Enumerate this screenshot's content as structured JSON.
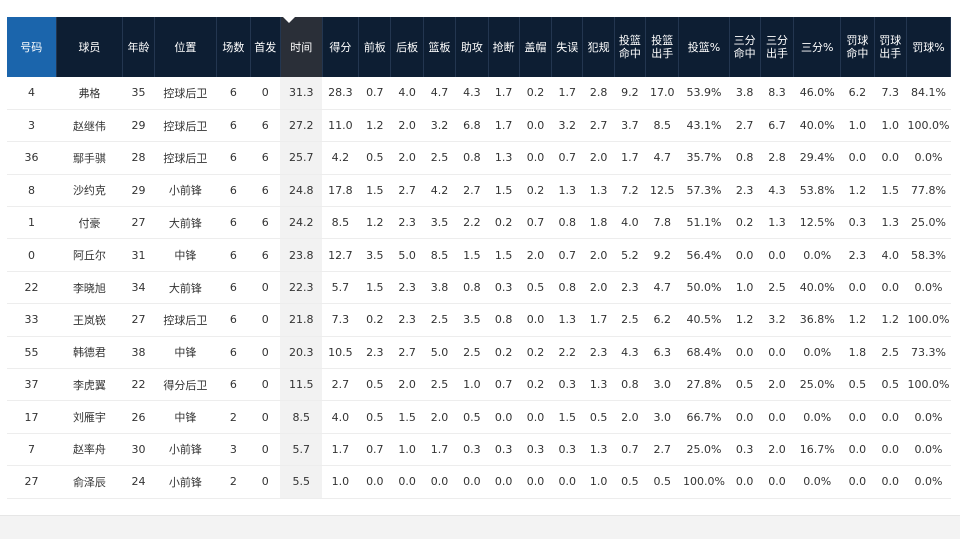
{
  "columns": [
    {
      "key": "num",
      "label": "号码"
    },
    {
      "key": "player",
      "label": "球员"
    },
    {
      "key": "age",
      "label": "年龄"
    },
    {
      "key": "pos",
      "label": "位置"
    },
    {
      "key": "games",
      "label": "场数"
    },
    {
      "key": "starts",
      "label": "首发"
    },
    {
      "key": "min",
      "label": "时间",
      "sorted": true
    },
    {
      "key": "pts",
      "label": "得分"
    },
    {
      "key": "oreb",
      "label": "前板"
    },
    {
      "key": "dreb",
      "label": "后板"
    },
    {
      "key": "reb",
      "label": "篮板"
    },
    {
      "key": "ast",
      "label": "助攻"
    },
    {
      "key": "stl",
      "label": "抢断"
    },
    {
      "key": "blk",
      "label": "盖帽"
    },
    {
      "key": "tov",
      "label": "失误"
    },
    {
      "key": "pf",
      "label": "犯规"
    },
    {
      "key": "fgm",
      "label": "投篮 命中"
    },
    {
      "key": "fga",
      "label": "投篮 出手"
    },
    {
      "key": "fgp",
      "label": "投篮%"
    },
    {
      "key": "tpm",
      "label": "三分 命中"
    },
    {
      "key": "tpa",
      "label": "三分 出手"
    },
    {
      "key": "tpp",
      "label": "三分%"
    },
    {
      "key": "ftm",
      "label": "罚球 命中"
    },
    {
      "key": "fta",
      "label": "罚球 出手"
    },
    {
      "key": "ftp",
      "label": "罚球%"
    }
  ],
  "rows": [
    [
      "4",
      "弗格",
      "35",
      "控球后卫",
      "6",
      "0",
      "31.3",
      "28.3",
      "0.7",
      "4.0",
      "4.7",
      "4.3",
      "1.7",
      "0.2",
      "1.7",
      "2.8",
      "9.2",
      "17.0",
      "53.9%",
      "3.8",
      "8.3",
      "46.0%",
      "6.2",
      "7.3",
      "84.1%"
    ],
    [
      "3",
      "赵继伟",
      "29",
      "控球后卫",
      "6",
      "6",
      "27.2",
      "11.0",
      "1.2",
      "2.0",
      "3.2",
      "6.8",
      "1.7",
      "0.0",
      "3.2",
      "2.7",
      "3.7",
      "8.5",
      "43.1%",
      "2.7",
      "6.7",
      "40.0%",
      "1.0",
      "1.0",
      "100.0%"
    ],
    [
      "36",
      "鄢手骐",
      "28",
      "控球后卫",
      "6",
      "6",
      "25.7",
      "4.2",
      "0.5",
      "2.0",
      "2.5",
      "0.8",
      "1.3",
      "0.0",
      "0.7",
      "2.0",
      "1.7",
      "4.7",
      "35.7%",
      "0.8",
      "2.8",
      "29.4%",
      "0.0",
      "0.0",
      "0.0%"
    ],
    [
      "8",
      "沙约克",
      "29",
      "小前锋",
      "6",
      "6",
      "24.8",
      "17.8",
      "1.5",
      "2.7",
      "4.2",
      "2.7",
      "1.5",
      "0.2",
      "1.3",
      "1.3",
      "7.2",
      "12.5",
      "57.3%",
      "2.3",
      "4.3",
      "53.8%",
      "1.2",
      "1.5",
      "77.8%"
    ],
    [
      "1",
      "付豪",
      "27",
      "大前锋",
      "6",
      "6",
      "24.2",
      "8.5",
      "1.2",
      "2.3",
      "3.5",
      "2.2",
      "0.2",
      "0.7",
      "0.8",
      "1.8",
      "4.0",
      "7.8",
      "51.1%",
      "0.2",
      "1.3",
      "12.5%",
      "0.3",
      "1.3",
      "25.0%"
    ],
    [
      "0",
      "阿丘尔",
      "31",
      "中锋",
      "6",
      "6",
      "23.8",
      "12.7",
      "3.5",
      "5.0",
      "8.5",
      "1.5",
      "1.5",
      "2.0",
      "0.7",
      "2.0",
      "5.2",
      "9.2",
      "56.4%",
      "0.0",
      "0.0",
      "0.0%",
      "2.3",
      "4.0",
      "58.3%"
    ],
    [
      "22",
      "李晓旭",
      "34",
      "大前锋",
      "6",
      "0",
      "22.3",
      "5.7",
      "1.5",
      "2.3",
      "3.8",
      "0.8",
      "0.3",
      "0.5",
      "0.8",
      "2.0",
      "2.3",
      "4.7",
      "50.0%",
      "1.0",
      "2.5",
      "40.0%",
      "0.0",
      "0.0",
      "0.0%"
    ],
    [
      "33",
      "王岚嵚",
      "27",
      "控球后卫",
      "6",
      "0",
      "21.8",
      "7.3",
      "0.2",
      "2.3",
      "2.5",
      "3.5",
      "0.8",
      "0.0",
      "1.3",
      "1.7",
      "2.5",
      "6.2",
      "40.5%",
      "1.2",
      "3.2",
      "36.8%",
      "1.2",
      "1.2",
      "100.0%"
    ],
    [
      "55",
      "韩德君",
      "38",
      "中锋",
      "6",
      "0",
      "20.3",
      "10.5",
      "2.3",
      "2.7",
      "5.0",
      "2.5",
      "0.2",
      "0.2",
      "2.2",
      "2.3",
      "4.3",
      "6.3",
      "68.4%",
      "0.0",
      "0.0",
      "0.0%",
      "1.8",
      "2.5",
      "73.3%"
    ],
    [
      "37",
      "李虎翼",
      "22",
      "得分后卫",
      "6",
      "0",
      "11.5",
      "2.7",
      "0.5",
      "2.0",
      "2.5",
      "1.0",
      "0.7",
      "0.2",
      "0.3",
      "1.3",
      "0.8",
      "3.0",
      "27.8%",
      "0.5",
      "2.0",
      "25.0%",
      "0.5",
      "0.5",
      "100.0%"
    ],
    [
      "17",
      "刘雁宇",
      "26",
      "中锋",
      "2",
      "0",
      "8.5",
      "4.0",
      "0.5",
      "1.5",
      "2.0",
      "0.5",
      "0.0",
      "0.0",
      "1.5",
      "0.5",
      "2.0",
      "3.0",
      "66.7%",
      "0.0",
      "0.0",
      "0.0%",
      "0.0",
      "0.0",
      "0.0%"
    ],
    [
      "7",
      "赵率舟",
      "30",
      "小前锋",
      "3",
      "0",
      "5.7",
      "1.7",
      "0.7",
      "1.0",
      "1.7",
      "0.3",
      "0.3",
      "0.3",
      "0.3",
      "1.3",
      "0.7",
      "2.7",
      "25.0%",
      "0.3",
      "2.0",
      "16.7%",
      "0.0",
      "0.0",
      "0.0%"
    ],
    [
      "27",
      "俞泽辰",
      "24",
      "小前锋",
      "2",
      "0",
      "5.5",
      "1.0",
      "0.0",
      "0.0",
      "0.0",
      "0.0",
      "0.0",
      "0.0",
      "0.0",
      "1.0",
      "0.5",
      "0.5",
      "100.0%",
      "0.0",
      "0.0",
      "0.0%",
      "0.0",
      "0.0",
      "0.0%"
    ]
  ],
  "colors": {
    "header": "#0d1e33",
    "header_first": "#1b65ac",
    "sorted_col_bg": "#f2f2f2"
  },
  "icons": {
    "sort": "sort-desc-caret-icon"
  }
}
